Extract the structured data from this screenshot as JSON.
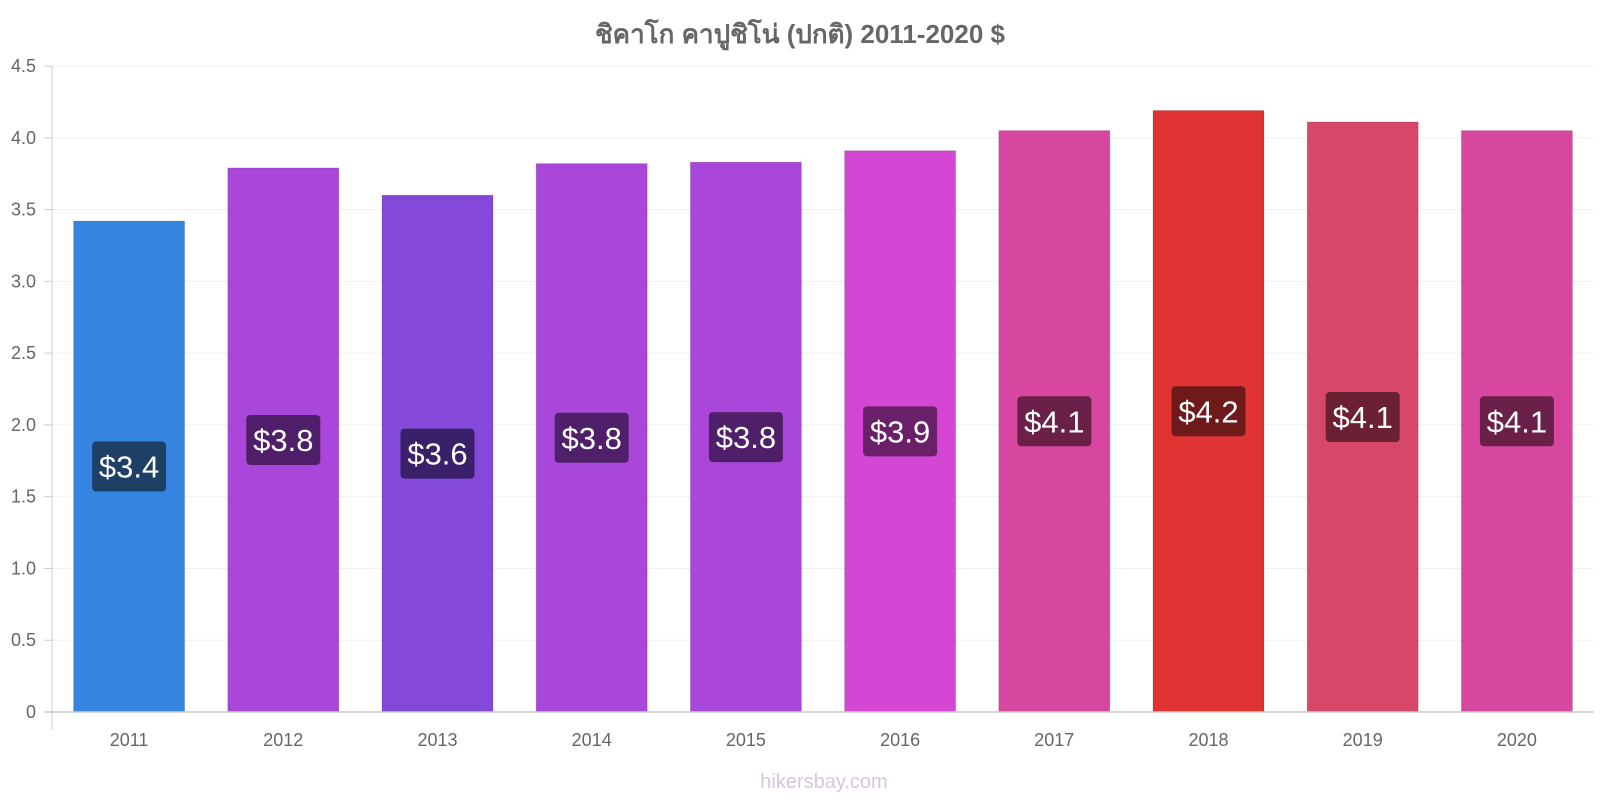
{
  "chart_data": {
    "type": "bar",
    "title": "ชิคาโก คาปูชิโน่ (ปกติ) 2011-2020 $",
    "categories": [
      "2011",
      "2012",
      "2013",
      "2014",
      "2015",
      "2016",
      "2017",
      "2018",
      "2019",
      "2020"
    ],
    "values": [
      3.42,
      3.79,
      3.6,
      3.82,
      3.83,
      3.91,
      4.05,
      4.19,
      4.11,
      4.05
    ],
    "data_labels": [
      "$3.4",
      "$3.8",
      "$3.6",
      "$3.8",
      "$3.8",
      "$3.9",
      "$4.1",
      "$4.2",
      "$4.1",
      "$4.1"
    ],
    "bar_colors": [
      "#3584e0",
      "#a847d9",
      "#8449d9",
      "#a847d9",
      "#a847d9",
      "#d347d4",
      "#d7479f",
      "#e03434",
      "#d7476a",
      "#d7479f"
    ],
    "label_bg_colors": [
      "#1e3f66",
      "#4f2069",
      "#3a1f69",
      "#4f2069",
      "#4f2069",
      "#6a2068",
      "#6b2049",
      "#6e1a1a",
      "#6b2033",
      "#6b2049"
    ],
    "ylim": [
      0,
      4.5
    ],
    "yticks": [
      "0",
      "0.5",
      "1.0",
      "1.5",
      "2.0",
      "2.5",
      "3.0",
      "3.5",
      "4.0",
      "4.5"
    ],
    "grid": true,
    "legend": "none",
    "xlabel": "",
    "ylabel": ""
  },
  "watermark": "hikersbay.com"
}
